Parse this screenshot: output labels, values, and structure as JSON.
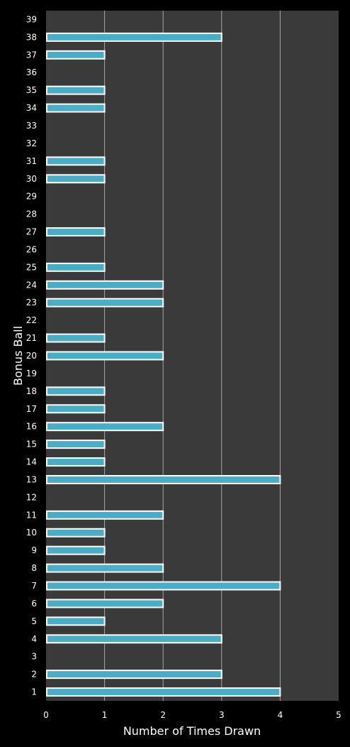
{
  "chart_data": {
    "type": "bar",
    "orientation": "horizontal",
    "xlabel": "Number of Times Drawn",
    "ylabel": "Bonus Ball",
    "xlim": [
      0,
      5
    ],
    "xticks": [
      "0",
      "1",
      "2",
      "3",
      "4",
      "5"
    ],
    "grid": "vertical",
    "colors": {
      "background": "#000000",
      "plot_area": "#3a3a3a",
      "bar_fill": "#4bacc6",
      "bar_border": "#ffffff",
      "gridline": "#a6a6a6",
      "text": "#ffffff"
    },
    "categories": [
      "1",
      "2",
      "3",
      "4",
      "5",
      "6",
      "7",
      "8",
      "9",
      "10",
      "11",
      "12",
      "13",
      "14",
      "15",
      "16",
      "17",
      "18",
      "19",
      "20",
      "21",
      "22",
      "23",
      "24",
      "25",
      "26",
      "27",
      "28",
      "29",
      "30",
      "31",
      "32",
      "33",
      "34",
      "35",
      "36",
      "37",
      "38",
      "39"
    ],
    "values": [
      4,
      3,
      0,
      3,
      1,
      2,
      4,
      2,
      1,
      1,
      2,
      0,
      4,
      1,
      1,
      2,
      1,
      1,
      0,
      2,
      1,
      0,
      2,
      2,
      1,
      0,
      1,
      0,
      0,
      1,
      1,
      0,
      0,
      1,
      1,
      0,
      1,
      3,
      0
    ]
  }
}
